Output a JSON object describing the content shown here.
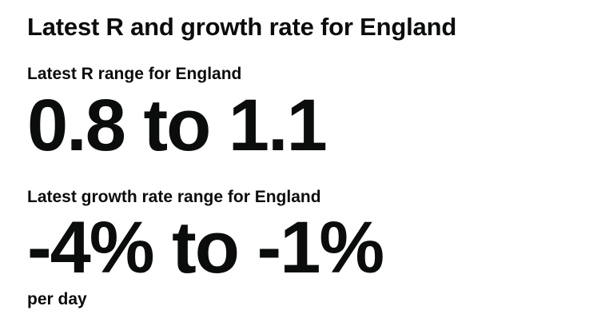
{
  "heading": "Latest R and growth rate for England",
  "r_range": {
    "label": "Latest R range for England",
    "value": "0.8 to 1.1"
  },
  "growth_rate": {
    "label": "Latest growth rate range for England",
    "value": "-4% to -1%",
    "unit": "per day"
  }
}
